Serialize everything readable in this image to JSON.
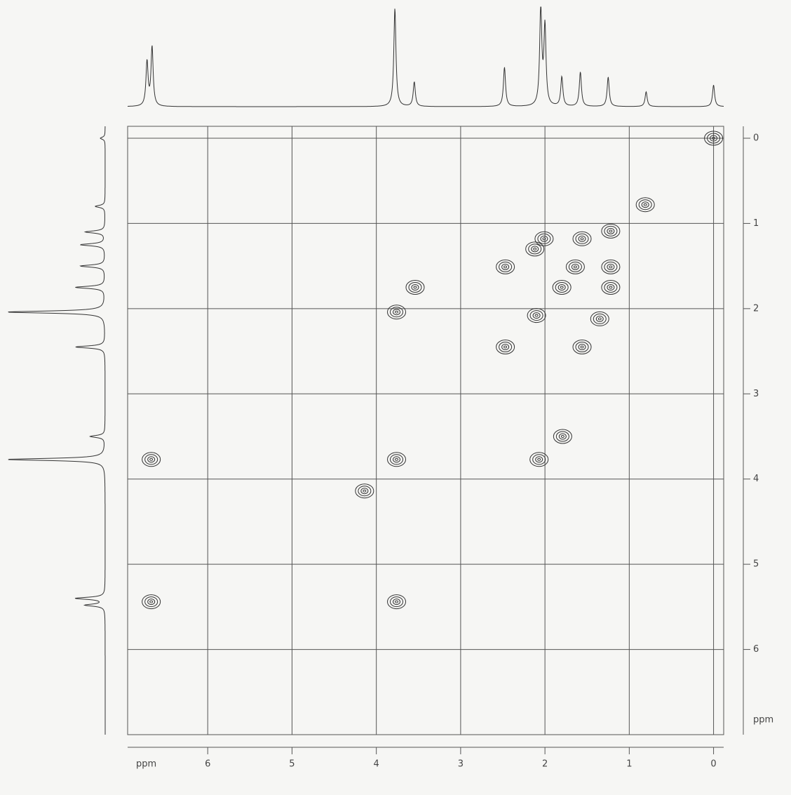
{
  "chart_data": {
    "type": "cosy",
    "xlabel": "ppm",
    "ylabel": "ppm",
    "xlim": [
      6.95,
      -0.12
    ],
    "ylim": [
      -0.14,
      7.0
    ],
    "xticks": [
      6,
      5,
      4,
      3,
      2,
      1,
      0
    ],
    "yticks": [
      0,
      1,
      2,
      3,
      4,
      5,
      6
    ],
    "grid": true,
    "color": "#333333",
    "x": [
      0,
      0.81,
      1.22,
      1.64,
      1.8,
      2.1,
      2.47,
      3.76,
      6.67,
      6.67,
      3.76,
      3.54,
      3.76,
      4.14,
      2.01,
      2.12,
      1.56,
      1.22,
      1.22,
      2.47,
      1.56,
      1.35,
      1.79,
      2.07
    ],
    "y": [
      0,
      0.78,
      1.09,
      1.51,
      1.75,
      2.08,
      2.45,
      3.77,
      3.77,
      5.44,
      5.44,
      1.75,
      2.04,
      4.14,
      1.18,
      1.3,
      1.18,
      1.51,
      1.75,
      1.51,
      2.45,
      2.12,
      3.5,
      3.77
    ],
    "top_projection": {
      "positions": [
        6.72,
        6.66,
        3.78,
        3.55,
        2.48,
        2.05,
        2.0,
        1.8,
        1.58,
        1.25,
        0.8,
        0.0
      ],
      "intensities": [
        0.45,
        0.6,
        1.0,
        0.25,
        0.4,
        1.0,
        0.8,
        0.3,
        0.35,
        0.3,
        0.15,
        0.22
      ]
    },
    "left_projection": {
      "positions": [
        0.0,
        0.8,
        1.1,
        1.25,
        1.5,
        1.75,
        2.04,
        2.45,
        3.5,
        3.77,
        5.4,
        5.48
      ],
      "intensities": [
        0.05,
        0.1,
        0.2,
        0.25,
        0.25,
        0.3,
        1.0,
        0.3,
        0.15,
        1.0,
        0.3,
        0.2
      ]
    }
  }
}
